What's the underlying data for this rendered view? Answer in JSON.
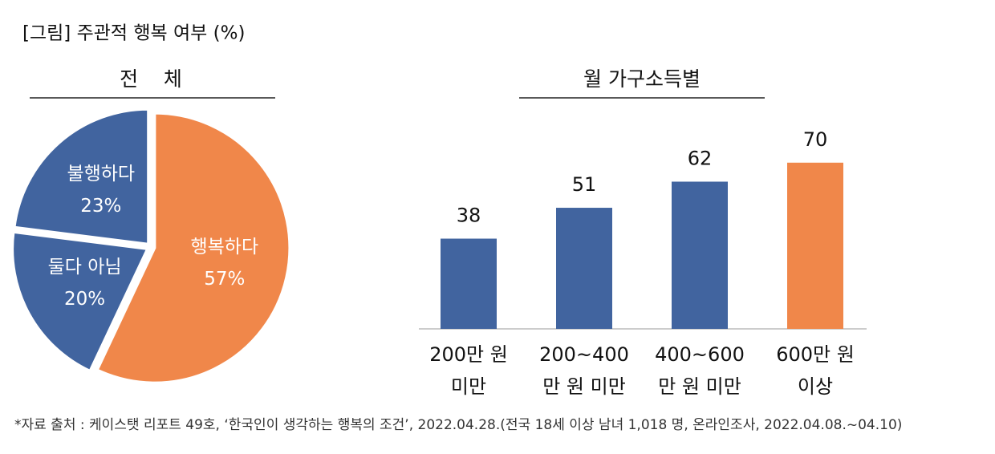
{
  "title": "[그림] 주관적 행복 여부 (%)",
  "chart_data": [
    {
      "type": "pie",
      "title": "전    체",
      "categories": [
        "행복하다",
        "둘다 아님",
        "불행하다"
      ],
      "values": [
        57,
        20,
        23
      ],
      "value_labels": [
        "57%",
        "20%",
        "23%"
      ],
      "colors": [
        "#f0874a",
        "#41649f",
        "#41649f"
      ]
    },
    {
      "type": "bar",
      "title": "월 가구소득별",
      "categories": [
        "200만 원\n미만",
        "200~400\n만 원 미만",
        "400~600\n만 원 미만",
        "600만 원\n이상"
      ],
      "values": [
        38,
        51,
        62,
        70
      ],
      "colors": [
        "#41649f",
        "#41649f",
        "#41649f",
        "#f0874a"
      ]
    }
  ],
  "source": "*자료 출처 : 케이스탯 리포트 49호, ‘한국인이 생각하는 행복의 조건’, 2022.04.28.(전국 18세 이상 남녀 1,018 명, 온라인조사, 2022.04.08.~04.10)"
}
